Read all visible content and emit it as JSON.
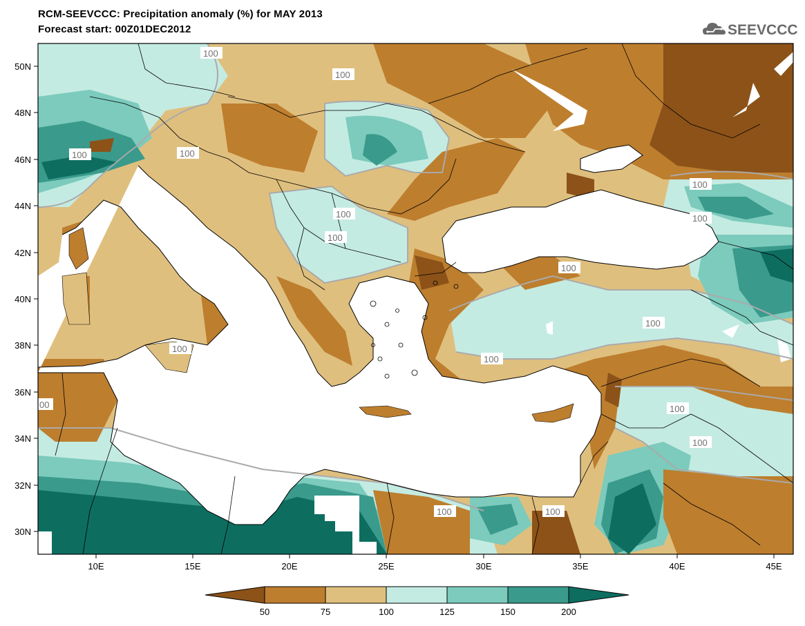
{
  "header": {
    "title": "RCM-SEEVCCC: Precipitation anomaly (%) for MAY 2013",
    "subtitle": "Forecast start: 00Z01DEC2012",
    "logo_text": "SEEVCCC"
  },
  "map": {
    "x_ticks": [
      "10E",
      "15E",
      "20E",
      "25E",
      "30E",
      "35E",
      "40E",
      "45E"
    ],
    "y_ticks": [
      "50N",
      "48N",
      "46N",
      "44N",
      "42N",
      "40N",
      "38N",
      "36N",
      "34N",
      "32N",
      "30N"
    ],
    "lon_range": [
      7,
      46
    ],
    "lat_range": [
      29,
      51
    ],
    "contour_labels": [
      "100",
      "100",
      "100",
      "100",
      "100",
      "100",
      "100",
      "100",
      "100",
      "100",
      "100",
      "100",
      "100",
      "100",
      "100",
      "100"
    ],
    "edge_label": "00"
  },
  "legend": {
    "levels": [
      "50",
      "75",
      "100",
      "125",
      "150",
      "200"
    ],
    "colors": [
      "#8c5218",
      "#bd7e2e",
      "#dfbf7e",
      "#c4ebe2",
      "#7ccbbd",
      "#3a9a8c",
      "#0d6e60"
    ]
  }
}
